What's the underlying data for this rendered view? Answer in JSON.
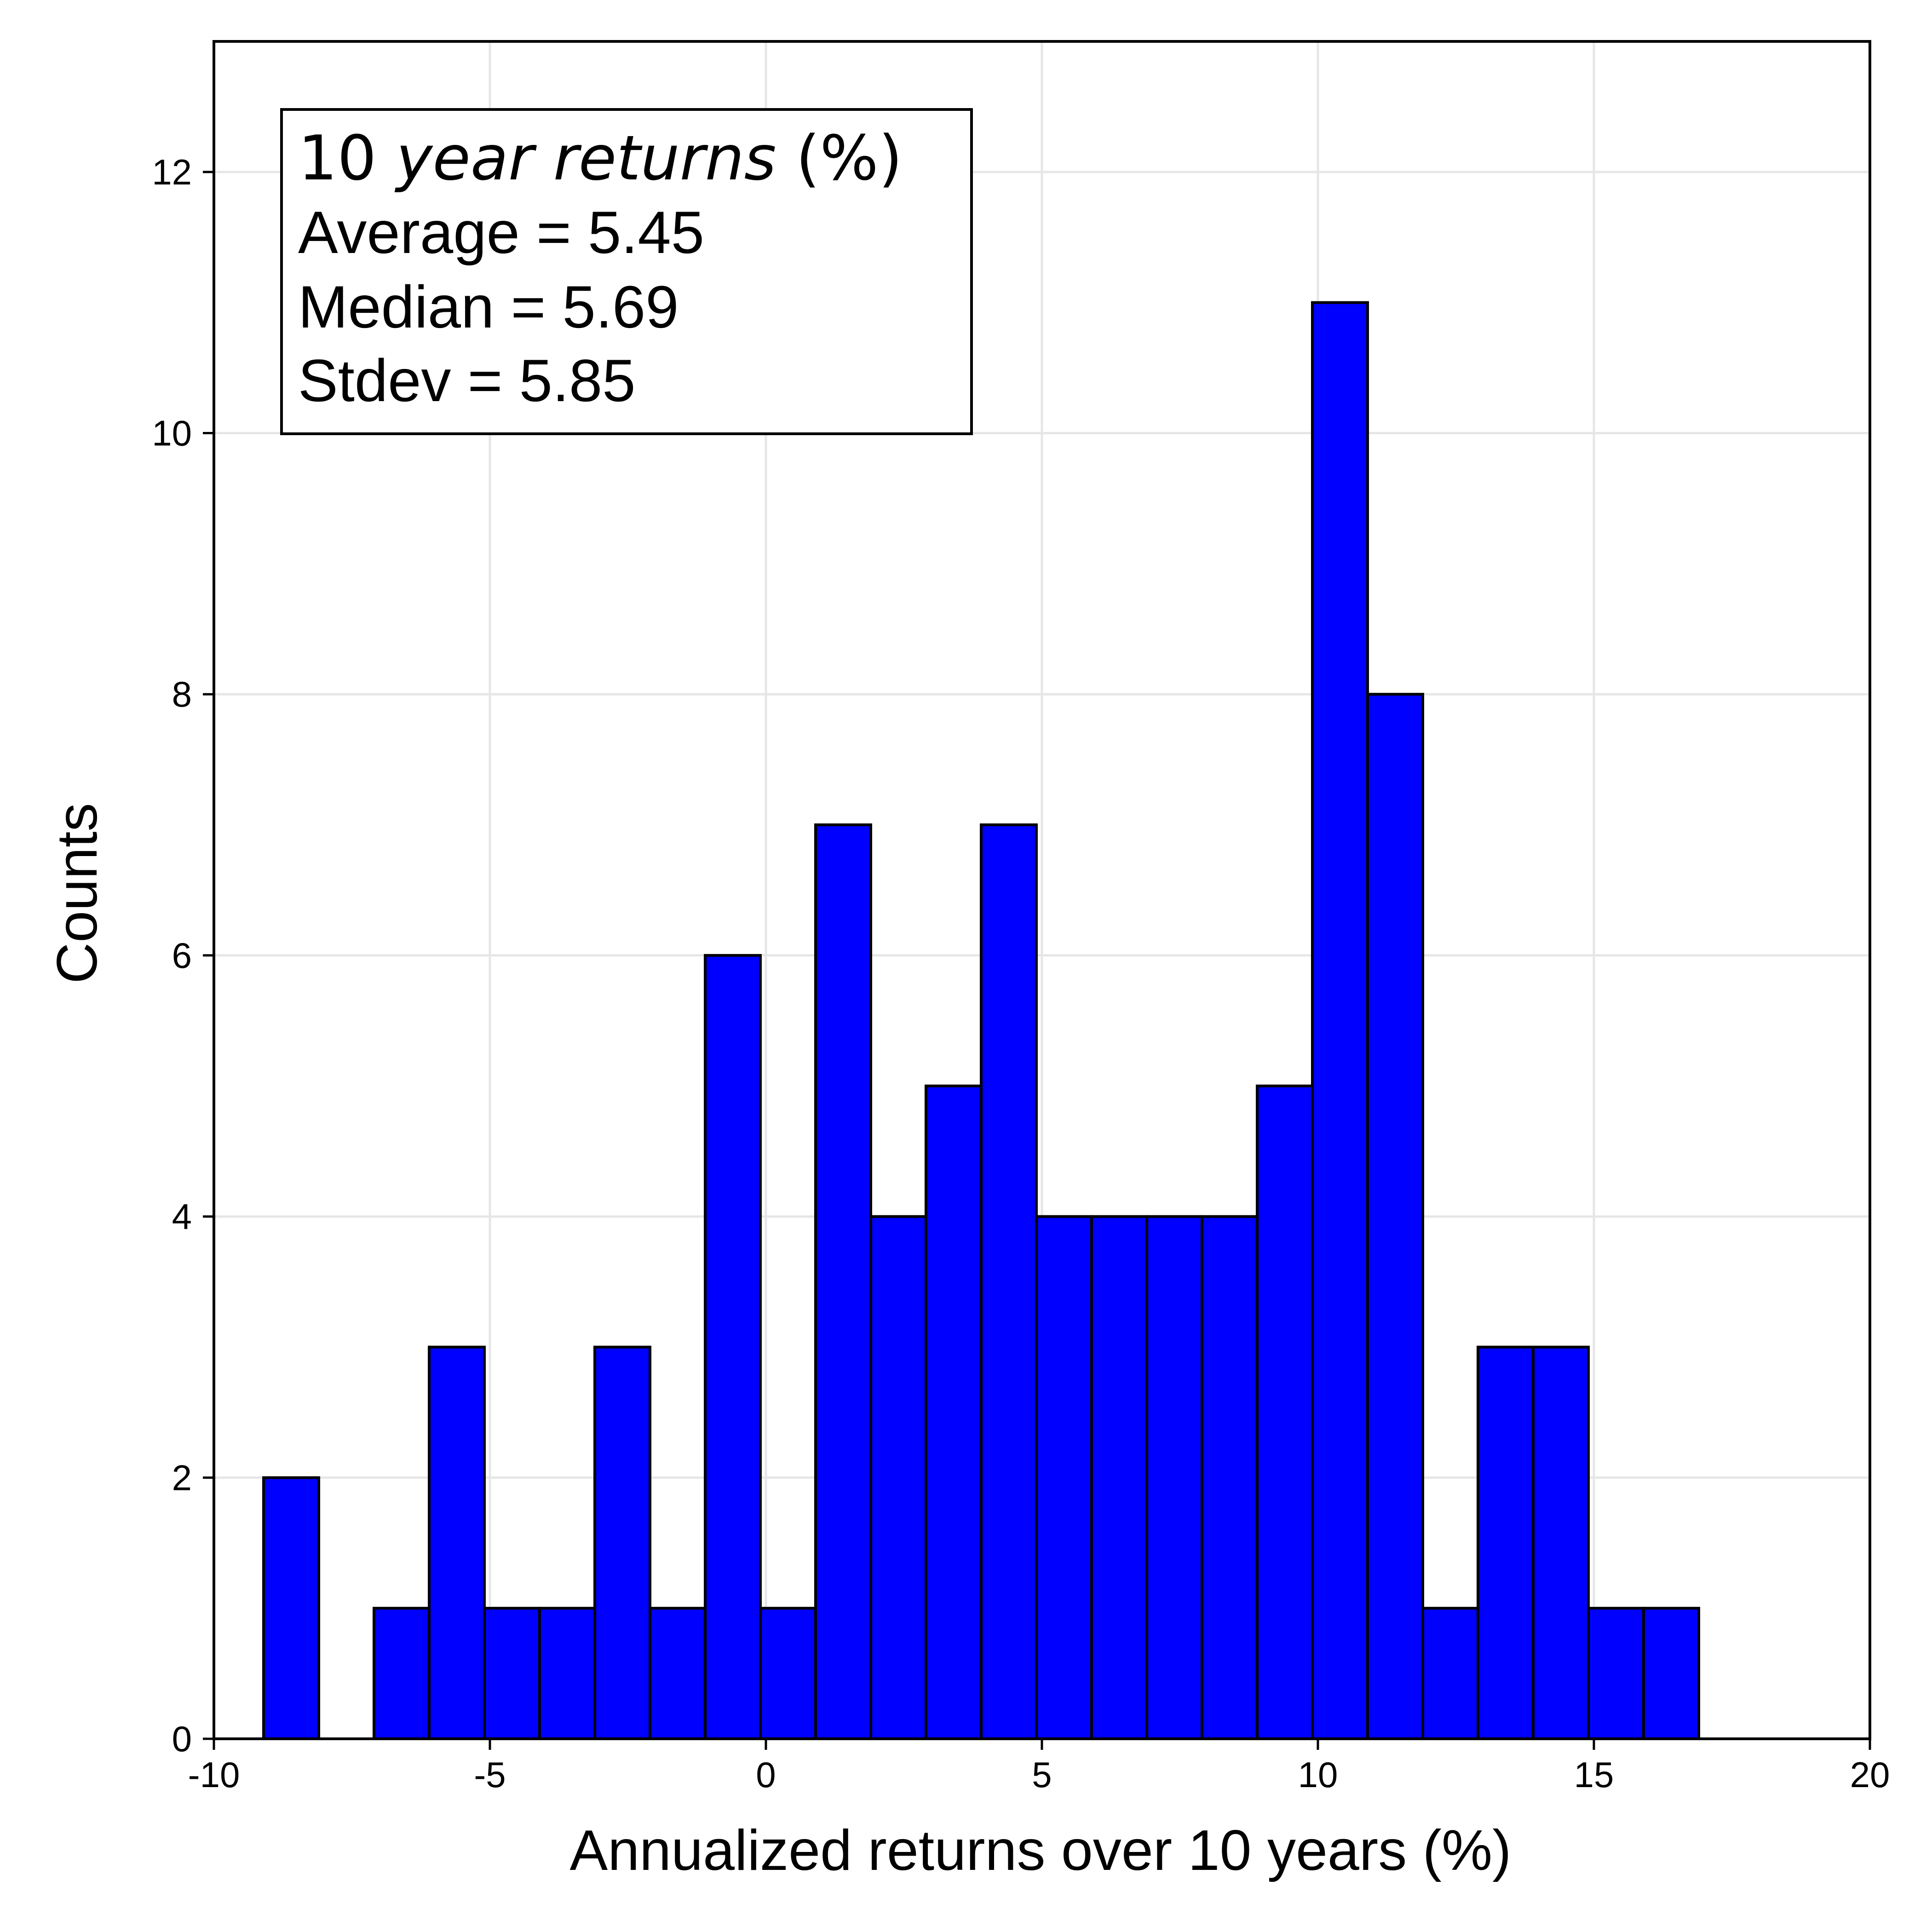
{
  "chart_data": {
    "type": "bar",
    "xlabel": "Annualized returns over 10 years (%)",
    "ylabel": "Counts",
    "xlim": [
      -10,
      20
    ],
    "ylim": [
      0,
      13
    ],
    "xticks": [
      -10,
      -5,
      0,
      5,
      10,
      15,
      20
    ],
    "xtick_labels": [
      "-10",
      "-5",
      "0",
      "5",
      "10",
      "15",
      "20"
    ],
    "yticks": [
      0,
      2,
      4,
      6,
      8,
      10,
      12
    ],
    "ytick_labels": [
      "0",
      "2",
      "4",
      "6",
      "8",
      "10",
      "12"
    ],
    "grid": true,
    "bar_color": "#0000ff",
    "bar_edge_color": "#000000",
    "bins": [
      {
        "x0": -9.1,
        "x1": -8.1,
        "count": 2
      },
      {
        "x0": -8.1,
        "x1": -7.1,
        "count": 0
      },
      {
        "x0": -7.1,
        "x1": -6.1,
        "count": 1
      },
      {
        "x0": -6.1,
        "x1": -5.1,
        "count": 3
      },
      {
        "x0": -5.1,
        "x1": -4.1,
        "count": 1
      },
      {
        "x0": -4.1,
        "x1": -3.1,
        "count": 1
      },
      {
        "x0": -3.1,
        "x1": -2.1,
        "count": 3
      },
      {
        "x0": -2.1,
        "x1": -1.1,
        "count": 1
      },
      {
        "x0": -1.1,
        "x1": -0.1,
        "count": 6
      },
      {
        "x0": -0.1,
        "x1": 0.9,
        "count": 1
      },
      {
        "x0": 0.9,
        "x1": 1.9,
        "count": 7
      },
      {
        "x0": 1.9,
        "x1": 2.9,
        "count": 4
      },
      {
        "x0": 2.9,
        "x1": 3.9,
        "count": 5
      },
      {
        "x0": 3.9,
        "x1": 4.9,
        "count": 7
      },
      {
        "x0": 4.9,
        "x1": 5.9,
        "count": 4
      },
      {
        "x0": 5.9,
        "x1": 6.9,
        "count": 4
      },
      {
        "x0": 6.9,
        "x1": 7.9,
        "count": 4
      },
      {
        "x0": 7.9,
        "x1": 8.9,
        "count": 4
      },
      {
        "x0": 8.9,
        "x1": 9.9,
        "count": 5
      },
      {
        "x0": 9.9,
        "x1": 10.9,
        "count": 11
      },
      {
        "x0": 10.9,
        "x1": 11.9,
        "count": 8
      },
      {
        "x0": 11.9,
        "x1": 12.9,
        "count": 1
      },
      {
        "x0": 12.9,
        "x1": 13.9,
        "count": 3
      },
      {
        "x0": 13.9,
        "x1": 14.9,
        "count": 3
      },
      {
        "x0": 14.9,
        "x1": 15.9,
        "count": 1
      },
      {
        "x0": 15.9,
        "x1": 16.9,
        "count": 1
      }
    ],
    "annotation": {
      "title_prefix": "10 ",
      "title_italic": "year returns",
      "title_suffix": " (%)",
      "lines": [
        "Average = 5.45",
        "Median = 5.69",
        "Stdev = 5.85"
      ]
    }
  }
}
